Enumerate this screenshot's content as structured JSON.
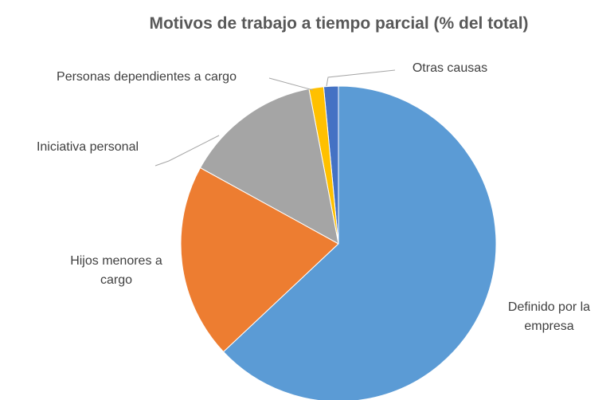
{
  "chart_data": {
    "type": "pie",
    "title": "Motivos de trabajo a tiempo parcial (% del total)",
    "categories": [
      "Definido por la empresa",
      "Hijos menores a cargo",
      "Iniciativa personal",
      "Personas dependientes a cargo",
      "Otras causas"
    ],
    "values": [
      63,
      20,
      14,
      1.5,
      1.5
    ],
    "colors": [
      "#5b9bd5",
      "#ed7d31",
      "#a5a5a5",
      "#ffc000",
      "#4472c4"
    ]
  }
}
